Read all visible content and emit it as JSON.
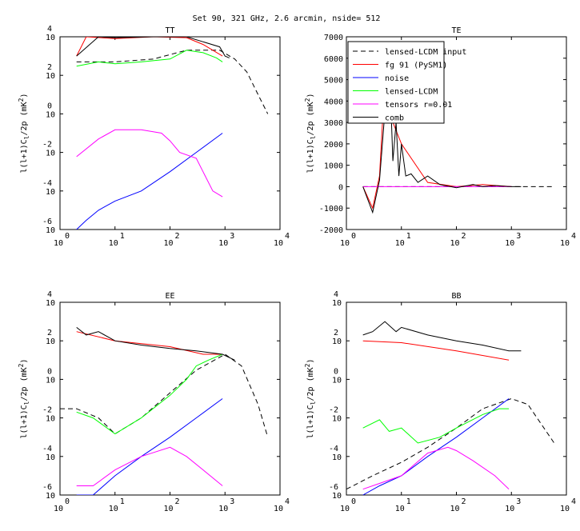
{
  "figure_title": "Set 90, 321 GHz,  2.6 arcmin, nside= 512",
  "legend": [
    {
      "label": "lensed-LCDM input",
      "color": "#000000",
      "dash": true
    },
    {
      "label": "fg 91 (PySM1)",
      "color": "#ff0000",
      "dash": false
    },
    {
      "label": "noise",
      "color": "#0000ff",
      "dash": false
    },
    {
      "label": "lensed-LCDM",
      "color": "#00ff00",
      "dash": false
    },
    {
      "label": "tensors r=0.01",
      "color": "#ff00ff",
      "dash": false
    },
    {
      "label": "comb",
      "color": "#000000",
      "dash": false
    }
  ],
  "chart_data": [
    {
      "type": "line",
      "title": "TT",
      "xscale": "log",
      "yscale": "log",
      "xlabel": "",
      "ylabel": "l(l+1)C_l/2p (mK^2)",
      "xlim": [
        1,
        10000
      ],
      "ylim": [
        1e-06,
        10000
      ],
      "xticks": [
        {
          "base": "10",
          "exp": "0"
        },
        {
          "base": "10",
          "exp": "1"
        },
        {
          "base": "10",
          "exp": "2"
        },
        {
          "base": "10",
          "exp": "3"
        },
        {
          "base": "10",
          "exp": "4"
        }
      ],
      "yticks": [
        {
          "base": "10",
          "exp": "-6"
        },
        {
          "base": "10",
          "exp": "-4"
        },
        {
          "base": "10",
          "exp": "-2"
        },
        {
          "base": "10",
          "exp": "0"
        },
        {
          "base": "10",
          "exp": "2"
        },
        {
          "base": "10",
          "exp": "4"
        }
      ],
      "series": [
        {
          "name": "lensed-LCDM input",
          "color": "#000000",
          "dash": true,
          "x": [
            2,
            10,
            50,
            200,
            800,
            1500,
            2500,
            4000,
            6000
          ],
          "y": [
            500,
            500,
            700,
            2000,
            2000,
            700,
            150,
            10,
            1
          ]
        },
        {
          "name": "fg 91 (PySM1)",
          "color": "#ff0000",
          "x": [
            2,
            3,
            10,
            50,
            200,
            400,
            600,
            900
          ],
          "y": [
            1000,
            10000,
            8000,
            10000,
            9000,
            4000,
            2000,
            1000
          ]
        },
        {
          "name": "noise",
          "color": "#0000ff",
          "x": [
            2,
            3,
            5,
            10,
            30,
            100,
            300,
            900
          ],
          "y": [
            1e-06,
            3e-06,
            1e-05,
            3e-05,
            0.0001,
            0.001,
            0.01,
            0.1
          ]
        },
        {
          "name": "lensed-LCDM",
          "color": "#00ff00",
          "x": [
            2,
            5,
            10,
            30,
            100,
            200,
            400,
            700,
            900
          ],
          "y": [
            300,
            500,
            400,
            500,
            700,
            2000,
            1500,
            800,
            500
          ]
        },
        {
          "name": "tensors r=0.01",
          "color": "#ff00ff",
          "x": [
            2,
            5,
            10,
            30,
            70,
            100,
            150,
            300,
            600,
            900
          ],
          "y": [
            0.006,
            0.05,
            0.15,
            0.15,
            0.1,
            0.04,
            0.01,
            0.005,
            0.0001,
            5e-05
          ]
        },
        {
          "name": "comb",
          "color": "#000000",
          "x": [
            2,
            5,
            10,
            50,
            200,
            800,
            1000,
            1200
          ],
          "y": [
            1000,
            10000,
            9000,
            10000,
            10000,
            3000,
            1000,
            800
          ]
        }
      ]
    },
    {
      "type": "line",
      "title": "TE",
      "xscale": "log",
      "yscale": "linear",
      "xlabel": "",
      "ylabel": "l(l+1)C_l/2p (mK^2)",
      "xlim": [
        1,
        10000
      ],
      "ylim": [
        -2000,
        7000
      ],
      "xticks": [
        {
          "base": "10",
          "exp": "0"
        },
        {
          "base": "10",
          "exp": "1"
        },
        {
          "base": "10",
          "exp": "2"
        },
        {
          "base": "10",
          "exp": "3"
        },
        {
          "base": "10",
          "exp": "4"
        }
      ],
      "yticks": [
        {
          "value": -2000,
          "label": "-2000"
        },
        {
          "value": -1000,
          "label": "-1000"
        },
        {
          "value": 0,
          "label": "0"
        },
        {
          "value": 1000,
          "label": "1000"
        },
        {
          "value": 2000,
          "label": "2000"
        },
        {
          "value": 3000,
          "label": "3000"
        },
        {
          "value": 4000,
          "label": "4000"
        },
        {
          "value": 5000,
          "label": "5000"
        },
        {
          "value": 6000,
          "label": "6000"
        },
        {
          "value": 7000,
          "label": "7000"
        }
      ],
      "series": [
        {
          "name": "lensed-LCDM input",
          "color": "#000000",
          "dash": true,
          "x": [
            2,
            100,
            1000,
            3000,
            6000
          ],
          "y": [
            0,
            0,
            0,
            0,
            0
          ]
        },
        {
          "name": "fg 91 (PySM1)",
          "color": "#ff0000",
          "x": [
            2,
            3,
            4,
            5,
            7,
            10,
            30,
            100,
            300,
            1000
          ],
          "y": [
            0,
            -1000,
            500,
            5000,
            3000,
            2000,
            200,
            0,
            100,
            0
          ]
        },
        {
          "name": "tensors r=0.01",
          "color": "#ff00ff",
          "x": [
            2,
            10,
            100,
            1000
          ],
          "y": [
            0,
            0,
            0,
            0
          ]
        },
        {
          "name": "comb",
          "color": "#000000",
          "x": [
            2,
            3,
            4,
            5,
            6,
            7,
            8,
            9,
            10,
            12,
            15,
            20,
            30,
            50,
            100,
            200,
            300,
            500,
            1000,
            1500
          ],
          "y": [
            0,
            -1200,
            300,
            3500,
            6000,
            1200,
            3000,
            500,
            2000,
            500,
            600,
            200,
            500,
            100,
            -50,
            100,
            0,
            50,
            0,
            0
          ]
        }
      ]
    },
    {
      "type": "line",
      "title": "EE",
      "xscale": "log",
      "yscale": "log",
      "xlabel": "",
      "ylabel": "l(l+1)C_l/2p (mK^2)",
      "xlim": [
        1,
        10000
      ],
      "ylim": [
        1e-06,
        10000
      ],
      "xticks": [
        {
          "base": "10",
          "exp": "0"
        },
        {
          "base": "10",
          "exp": "1"
        },
        {
          "base": "10",
          "exp": "2"
        },
        {
          "base": "10",
          "exp": "3"
        },
        {
          "base": "10",
          "exp": "4"
        }
      ],
      "yticks": [
        {
          "base": "10",
          "exp": "-6"
        },
        {
          "base": "10",
          "exp": "-4"
        },
        {
          "base": "10",
          "exp": "-2"
        },
        {
          "base": "10",
          "exp": "0"
        },
        {
          "base": "10",
          "exp": "2"
        },
        {
          "base": "10",
          "exp": "4"
        }
      ],
      "series": [
        {
          "name": "lensed-LCDM input",
          "color": "#000000",
          "dash": true,
          "x": [
            1,
            2,
            5,
            10,
            30,
            100,
            300,
            1000,
            2000,
            4000,
            6000
          ],
          "y": [
            0.03,
            0.03,
            0.01,
            0.0015,
            0.01,
            0.2,
            3,
            20,
            5,
            0.05,
            0.001
          ]
        },
        {
          "name": "fg 91 (PySM1)",
          "color": "#ff0000",
          "x": [
            2,
            10,
            100,
            400,
            900
          ],
          "y": [
            300,
            100,
            50,
            20,
            20
          ]
        },
        {
          "name": "noise",
          "color": "#0000ff",
          "x": [
            2,
            4,
            10,
            30,
            100,
            300,
            900
          ],
          "y": [
            1e-06,
            1e-06,
            1e-05,
            0.0001,
            0.001,
            0.01,
            0.1
          ]
        },
        {
          "name": "lensed-LCDM",
          "color": "#00ff00",
          "x": [
            2,
            4,
            10,
            30,
            100,
            200,
            300,
            500,
            900
          ],
          "y": [
            0.02,
            0.01,
            0.0015,
            0.01,
            0.15,
            1,
            5,
            10,
            20
          ]
        },
        {
          "name": "tensors r=0.01",
          "color": "#ff00ff",
          "x": [
            2,
            4,
            10,
            30,
            100,
            200,
            400,
            900
          ],
          "y": [
            3e-06,
            3e-06,
            2e-05,
            0.0001,
            0.0003,
            0.0001,
            2e-05,
            3e-06
          ]
        },
        {
          "name": "comb",
          "color": "#000000",
          "x": [
            2,
            3,
            5,
            10,
            30,
            100,
            300,
            900,
            1500
          ],
          "y": [
            500,
            200,
            300,
            100,
            60,
            40,
            30,
            20,
            10
          ]
        }
      ]
    },
    {
      "type": "line",
      "title": "BB",
      "xscale": "log",
      "yscale": "log",
      "xlabel": "",
      "ylabel": "l(l+1)C_l/2p (mK^2)",
      "xlim": [
        1,
        10000
      ],
      "ylim": [
        1e-06,
        10000
      ],
      "xticks": [
        {
          "base": "10",
          "exp": "0"
        },
        {
          "base": "10",
          "exp": "1"
        },
        {
          "base": "10",
          "exp": "2"
        },
        {
          "base": "10",
          "exp": "3"
        },
        {
          "base": "10",
          "exp": "4"
        }
      ],
      "yticks": [
        {
          "base": "10",
          "exp": "-6"
        },
        {
          "base": "10",
          "exp": "-4"
        },
        {
          "base": "10",
          "exp": "-2"
        },
        {
          "base": "10",
          "exp": "0"
        },
        {
          "base": "10",
          "exp": "2"
        },
        {
          "base": "10",
          "exp": "4"
        }
      ],
      "series": [
        {
          "name": "lensed-LCDM input",
          "color": "#000000",
          "dash": true,
          "x": [
            1,
            3,
            10,
            30,
            100,
            300,
            1000,
            2000,
            6000
          ],
          "y": [
            2e-06,
            1e-05,
            5e-05,
            0.0003,
            0.003,
            0.03,
            0.1,
            0.05,
            0.0005
          ]
        },
        {
          "name": "fg 91 (PySM1)",
          "color": "#ff0000",
          "x": [
            2,
            10,
            100,
            900
          ],
          "y": [
            100,
            80,
            30,
            10
          ]
        },
        {
          "name": "noise",
          "color": "#0000ff",
          "x": [
            2,
            4,
            10,
            30,
            100,
            300,
            900
          ],
          "y": [
            1e-06,
            3e-06,
            1e-05,
            0.0001,
            0.001,
            0.01,
            0.1
          ]
        },
        {
          "name": "lensed-LCDM",
          "color": "#00ff00",
          "x": [
            2,
            4,
            6,
            10,
            20,
            50,
            100,
            300,
            600,
            900
          ],
          "y": [
            0.003,
            0.008,
            0.002,
            0.003,
            0.0005,
            0.001,
            0.003,
            0.015,
            0.03,
            0.03
          ]
        },
        {
          "name": "tensors r=0.01",
          "color": "#ff00ff",
          "x": [
            2,
            4,
            10,
            30,
            70,
            100,
            200,
            500,
            900
          ],
          "y": [
            2e-06,
            4e-06,
            1e-05,
            0.00015,
            0.0003,
            0.0002,
            6e-05,
            1e-05,
            2e-06
          ]
        },
        {
          "name": "comb",
          "color": "#000000",
          "x": [
            2,
            3,
            5,
            8,
            10,
            30,
            100,
            300,
            900,
            1500
          ],
          "y": [
            200,
            300,
            1000,
            300,
            500,
            200,
            100,
            60,
            30,
            30
          ]
        }
      ]
    }
  ]
}
